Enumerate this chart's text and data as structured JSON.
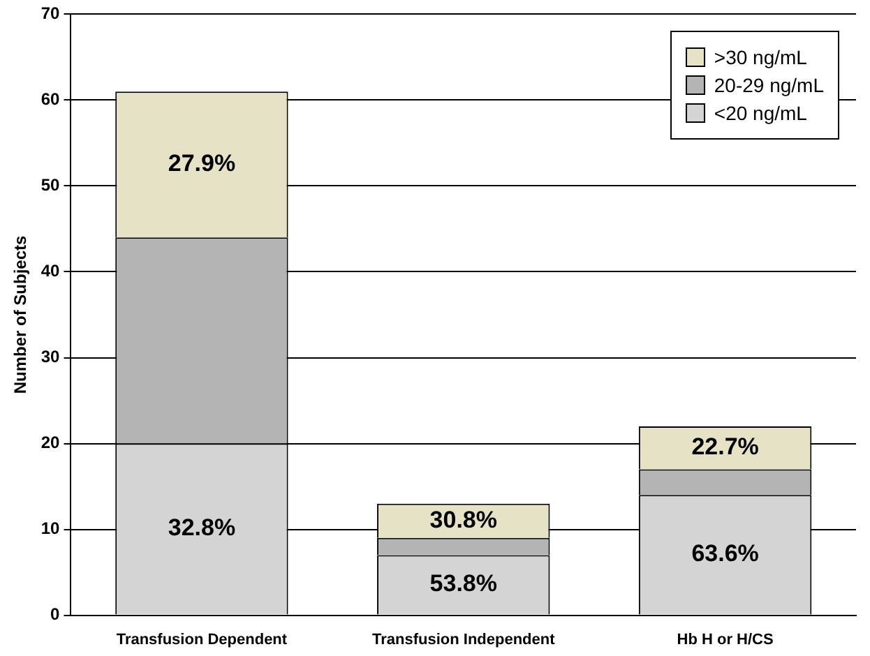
{
  "chart_data": {
    "type": "bar",
    "stacked": true,
    "ylabel": "Number of Subjects",
    "categories": [
      "Transfusion Dependent",
      "Transfusion Independent",
      "Hb H or H/CS"
    ],
    "series": [
      {
        "name": "<20 ng/mL",
        "color": "#d4d4d4",
        "values": [
          20,
          7,
          14
        ]
      },
      {
        "name": "20-29 ng/mL",
        "color": "#b4b4b4",
        "values": [
          24,
          2,
          3
        ]
      },
      {
        "name": ">30 ng/mL",
        "color": "#e6e2c6",
        "values": [
          17,
          4,
          5
        ]
      }
    ],
    "annotations": [
      "32.8%",
      "53.8%",
      "63.6%",
      "27.9%",
      "30.8%",
      "22.7%"
    ],
    "ylim": [
      0,
      70
    ],
    "yticks": [
      0,
      10,
      20,
      30,
      40,
      50,
      60,
      70
    ],
    "grid": "y",
    "legend": "top right"
  }
}
